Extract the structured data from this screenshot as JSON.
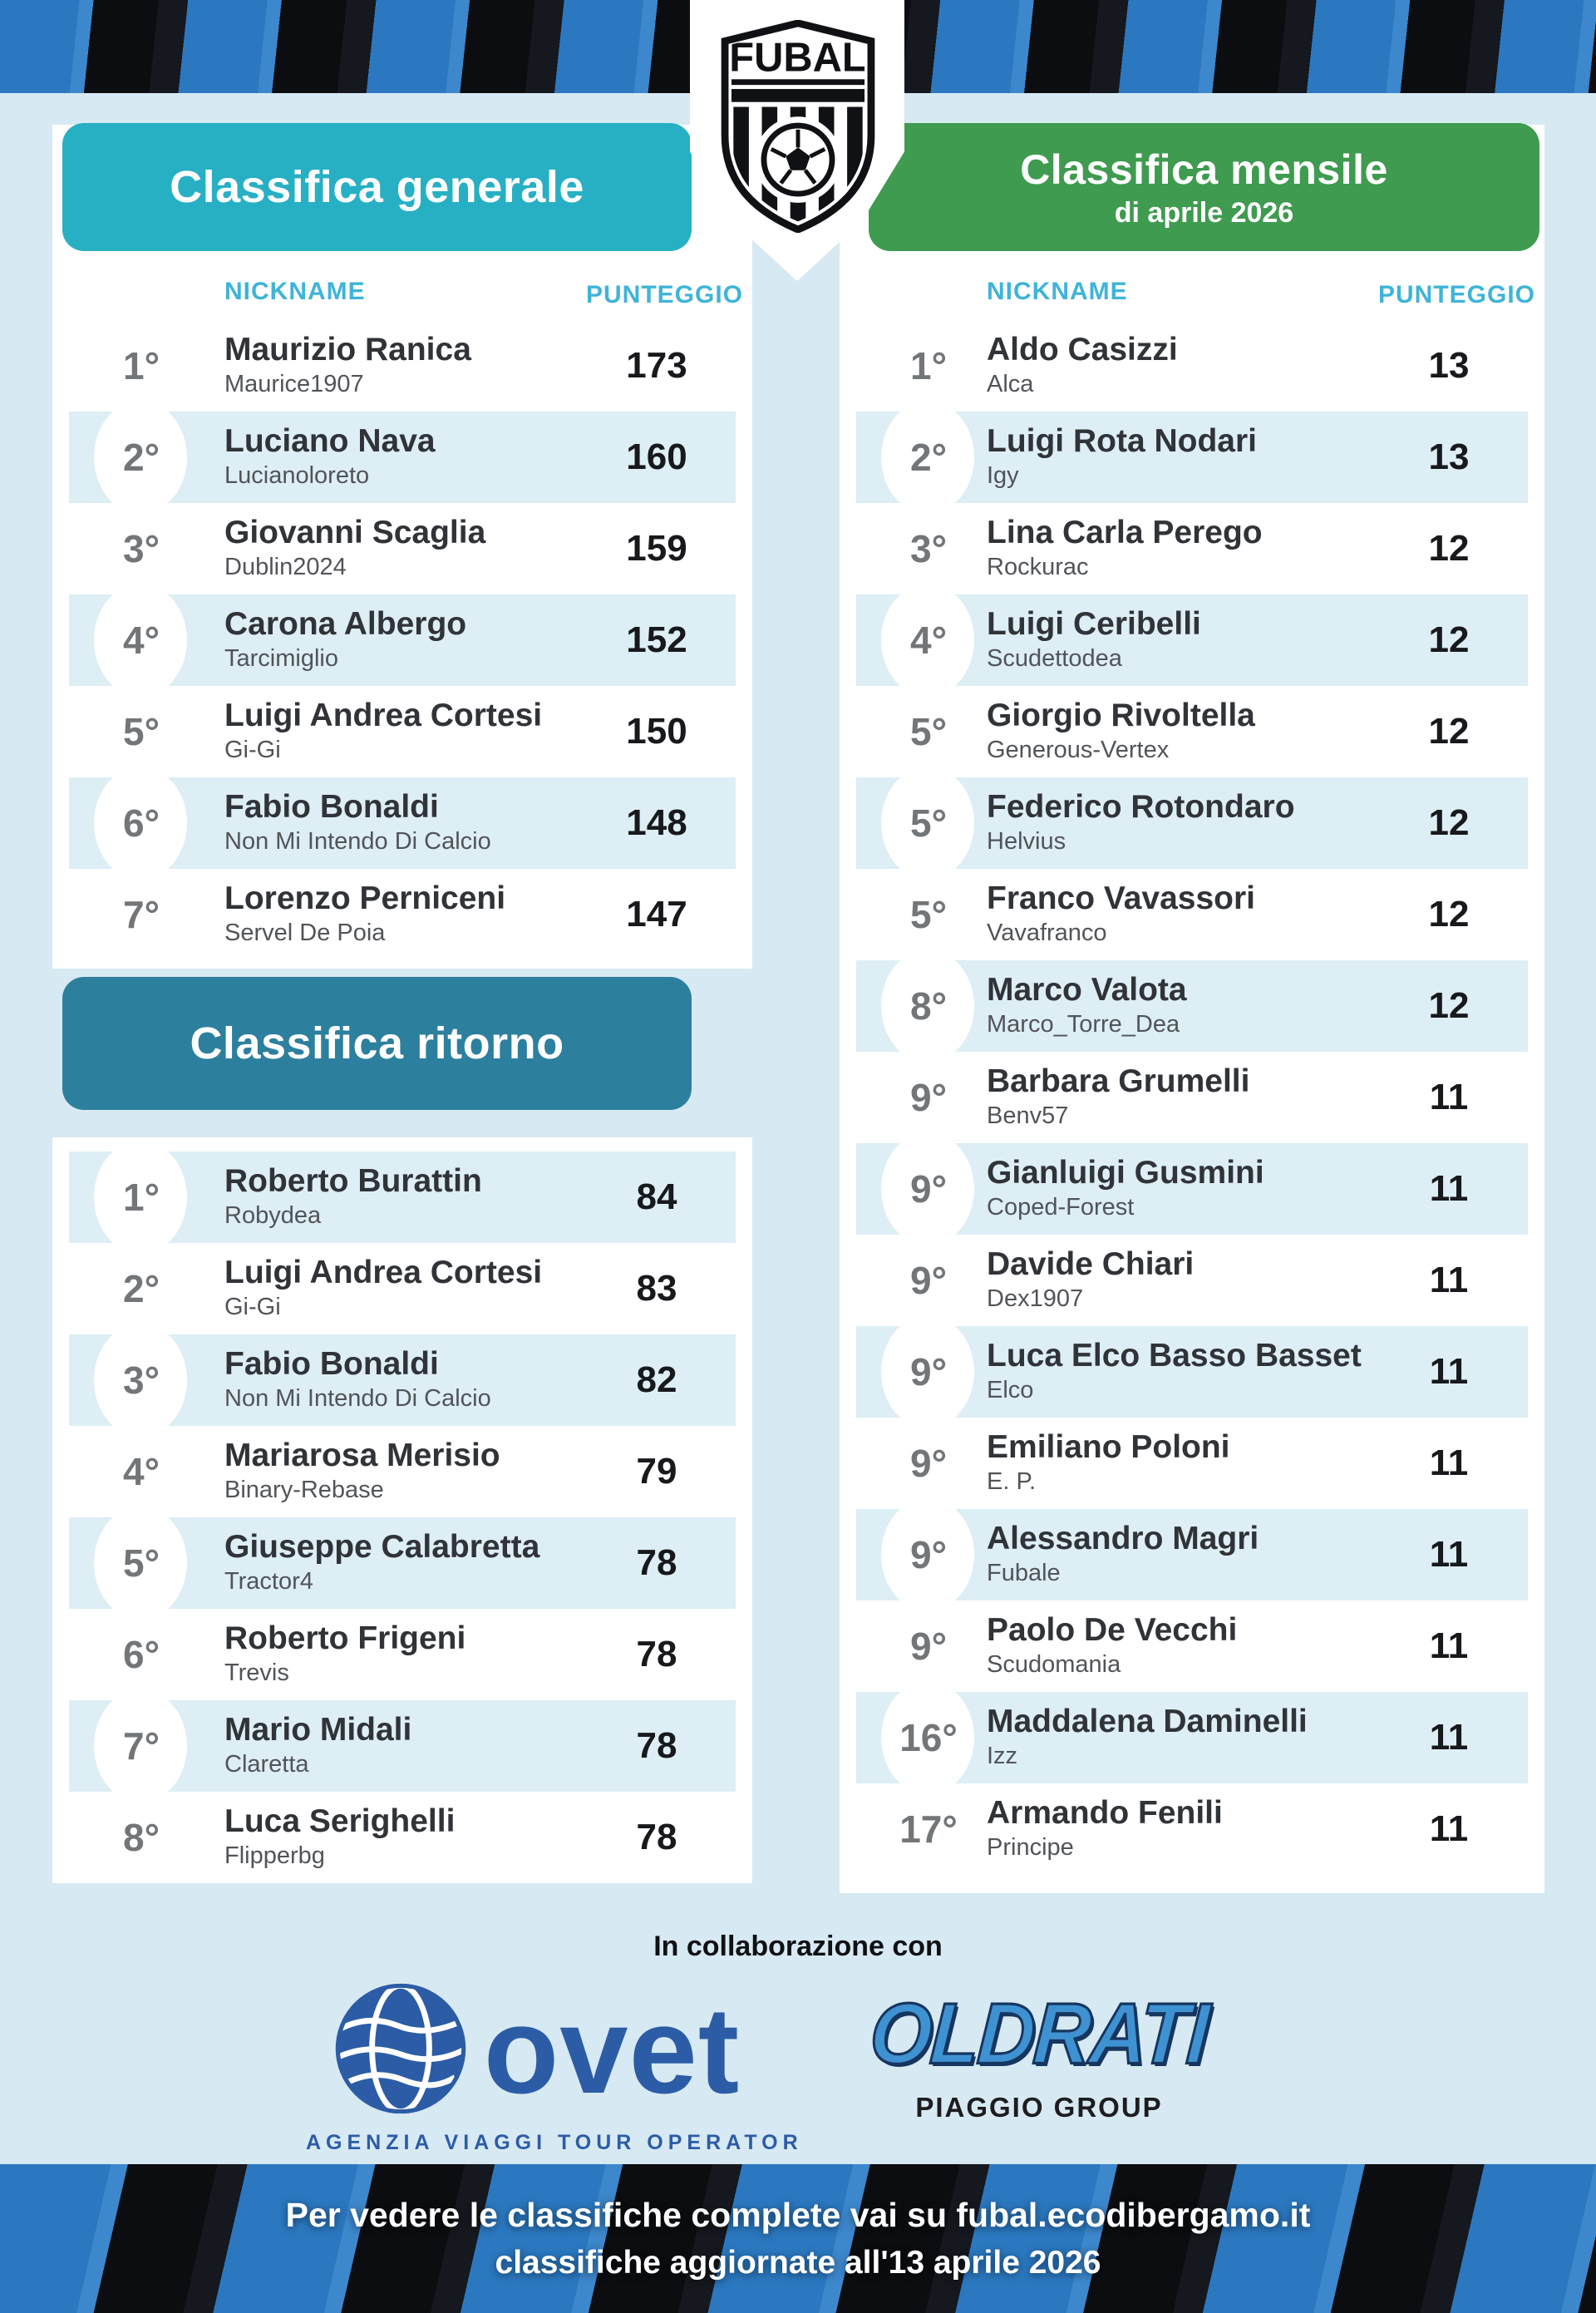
{
  "header": {
    "logo_text": "FUBAL"
  },
  "tables": {
    "generale": {
      "title": "Classifica generale",
      "columns": {
        "nickname": "NICKNAME",
        "punteggio": "PUNTEGGIO"
      },
      "rows": [
        {
          "rank": "1°",
          "name": "Maurizio Ranica",
          "nickname": "Maurice1907",
          "score": "173",
          "highlight": false
        },
        {
          "rank": "2°",
          "name": "Luciano Nava",
          "nickname": "Lucianoloreto",
          "score": "160",
          "highlight": true
        },
        {
          "rank": "3°",
          "name": "Giovanni Scaglia",
          "nickname": "Dublin2024",
          "score": "159",
          "highlight": false
        },
        {
          "rank": "4°",
          "name": "Carona Albergo",
          "nickname": "Tarcimiglio",
          "score": "152",
          "highlight": true
        },
        {
          "rank": "5°",
          "name": "Luigi Andrea Cortesi",
          "nickname": "Gi-Gi",
          "score": "150",
          "highlight": false
        },
        {
          "rank": "6°",
          "name": "Fabio Bonaldi",
          "nickname": "Non Mi Intendo Di Calcio",
          "score": "148",
          "highlight": true
        },
        {
          "rank": "7°",
          "name": "Lorenzo Perniceni",
          "nickname": "Servel De Poia",
          "score": "147",
          "highlight": false
        }
      ]
    },
    "ritorno": {
      "title": "Classifica ritorno",
      "rows": [
        {
          "rank": "1°",
          "name": "Roberto Burattin",
          "nickname": "Robydea",
          "score": "84",
          "highlight": true
        },
        {
          "rank": "2°",
          "name": "Luigi Andrea Cortesi",
          "nickname": "Gi-Gi",
          "score": "83",
          "highlight": false
        },
        {
          "rank": "3°",
          "name": "Fabio Bonaldi",
          "nickname": "Non Mi Intendo Di Calcio",
          "score": "82",
          "highlight": true
        },
        {
          "rank": "4°",
          "name": "Mariarosa Merisio",
          "nickname": "Binary-Rebase",
          "score": "79",
          "highlight": false
        },
        {
          "rank": "5°",
          "name": "Giuseppe Calabretta",
          "nickname": "Tractor4",
          "score": "78",
          "highlight": true
        },
        {
          "rank": "6°",
          "name": "Roberto Frigeni",
          "nickname": "Trevis",
          "score": "78",
          "highlight": false
        },
        {
          "rank": "7°",
          "name": "Mario Midali",
          "nickname": "Claretta",
          "score": "78",
          "highlight": true
        },
        {
          "rank": "8°",
          "name": "Luca Serighelli",
          "nickname": "Flipperbg",
          "score": "78",
          "highlight": false
        }
      ]
    },
    "mensile": {
      "title": "Classifica mensile",
      "subtitle": "di aprile 2026",
      "columns": {
        "nickname": "NICKNAME",
        "punteggio": "PUNTEGGIO"
      },
      "rows": [
        {
          "rank": "1°",
          "name": "Aldo Casizzi",
          "nickname": "Alca",
          "score": "13",
          "highlight": false
        },
        {
          "rank": "2°",
          "name": "Luigi Rota Nodari",
          "nickname": "Igy",
          "score": "13",
          "highlight": true
        },
        {
          "rank": "3°",
          "name": "Lina Carla Perego",
          "nickname": "Rockurac",
          "score": "12",
          "highlight": false
        },
        {
          "rank": "4°",
          "name": "Luigi Ceribelli",
          "nickname": "Scudettodea",
          "score": "12",
          "highlight": true
        },
        {
          "rank": "5°",
          "name": "Giorgio Rivoltella",
          "nickname": "Generous-Vertex",
          "score": "12",
          "highlight": false
        },
        {
          "rank": "5°",
          "name": "Federico Rotondaro",
          "nickname": "Helvius",
          "score": "12",
          "highlight": true
        },
        {
          "rank": "5°",
          "name": "Franco Vavassori",
          "nickname": "Vavafranco",
          "score": "12",
          "highlight": false
        },
        {
          "rank": "8°",
          "name": "Marco Valota",
          "nickname": "Marco_Torre_Dea",
          "score": "12",
          "highlight": true
        },
        {
          "rank": "9°",
          "name": "Barbara Grumelli",
          "nickname": "Benv57",
          "score": "11",
          "highlight": false
        },
        {
          "rank": "9°",
          "name": "Gianluigi Gusmini",
          "nickname": "Coped-Forest",
          "score": "11",
          "highlight": true
        },
        {
          "rank": "9°",
          "name": "Davide Chiari",
          "nickname": "Dex1907",
          "score": "11",
          "highlight": false
        },
        {
          "rank": "9°",
          "name": "Luca Elco Basso Basset",
          "nickname": "Elco",
          "score": "11",
          "highlight": true
        },
        {
          "rank": "9°",
          "name": "Emiliano Poloni",
          "nickname": "E. P.",
          "score": "11",
          "highlight": false
        },
        {
          "rank": "9°",
          "name": "Alessandro Magri",
          "nickname": "Fubale",
          "score": "11",
          "highlight": true
        },
        {
          "rank": "9°",
          "name": "Paolo De Vecchi",
          "nickname": "Scudomania",
          "score": "11",
          "highlight": false
        },
        {
          "rank": "16°",
          "name": "Maddalena Daminelli",
          "nickname": "Izz",
          "score": "11",
          "highlight": true
        },
        {
          "rank": "17°",
          "name": "Armando Fenili",
          "nickname": "Principe",
          "score": "11",
          "highlight": false
        }
      ]
    }
  },
  "sponsors": {
    "heading": "In collaborazione con",
    "ovet": {
      "name": "ovet",
      "tagline": "AGENZIA VIAGGI TOUR OPERATOR"
    },
    "oldrati": {
      "name": "OLDRATI",
      "group": "PIAGGIO GROUP"
    }
  },
  "footer": {
    "line1": "Per vedere le classifiche complete vai su fubal.ecodibergamo.it",
    "line2": "classifiche aggiornate all'13 aprile 2026"
  },
  "colors": {
    "teal": "#27b0c4",
    "dark_teal": "#2d7f9e",
    "green": "#3f9b4f",
    "accent_cyan": "#3fb4d8",
    "highlight_row": "#ddeef5",
    "page_bg": "#d7e9f2",
    "stripe_blue": "#2b78c0",
    "stripe_black": "#0b0d11",
    "ovet_blue": "#2c5ca6",
    "oldrati_blue": "#3f92d2"
  }
}
